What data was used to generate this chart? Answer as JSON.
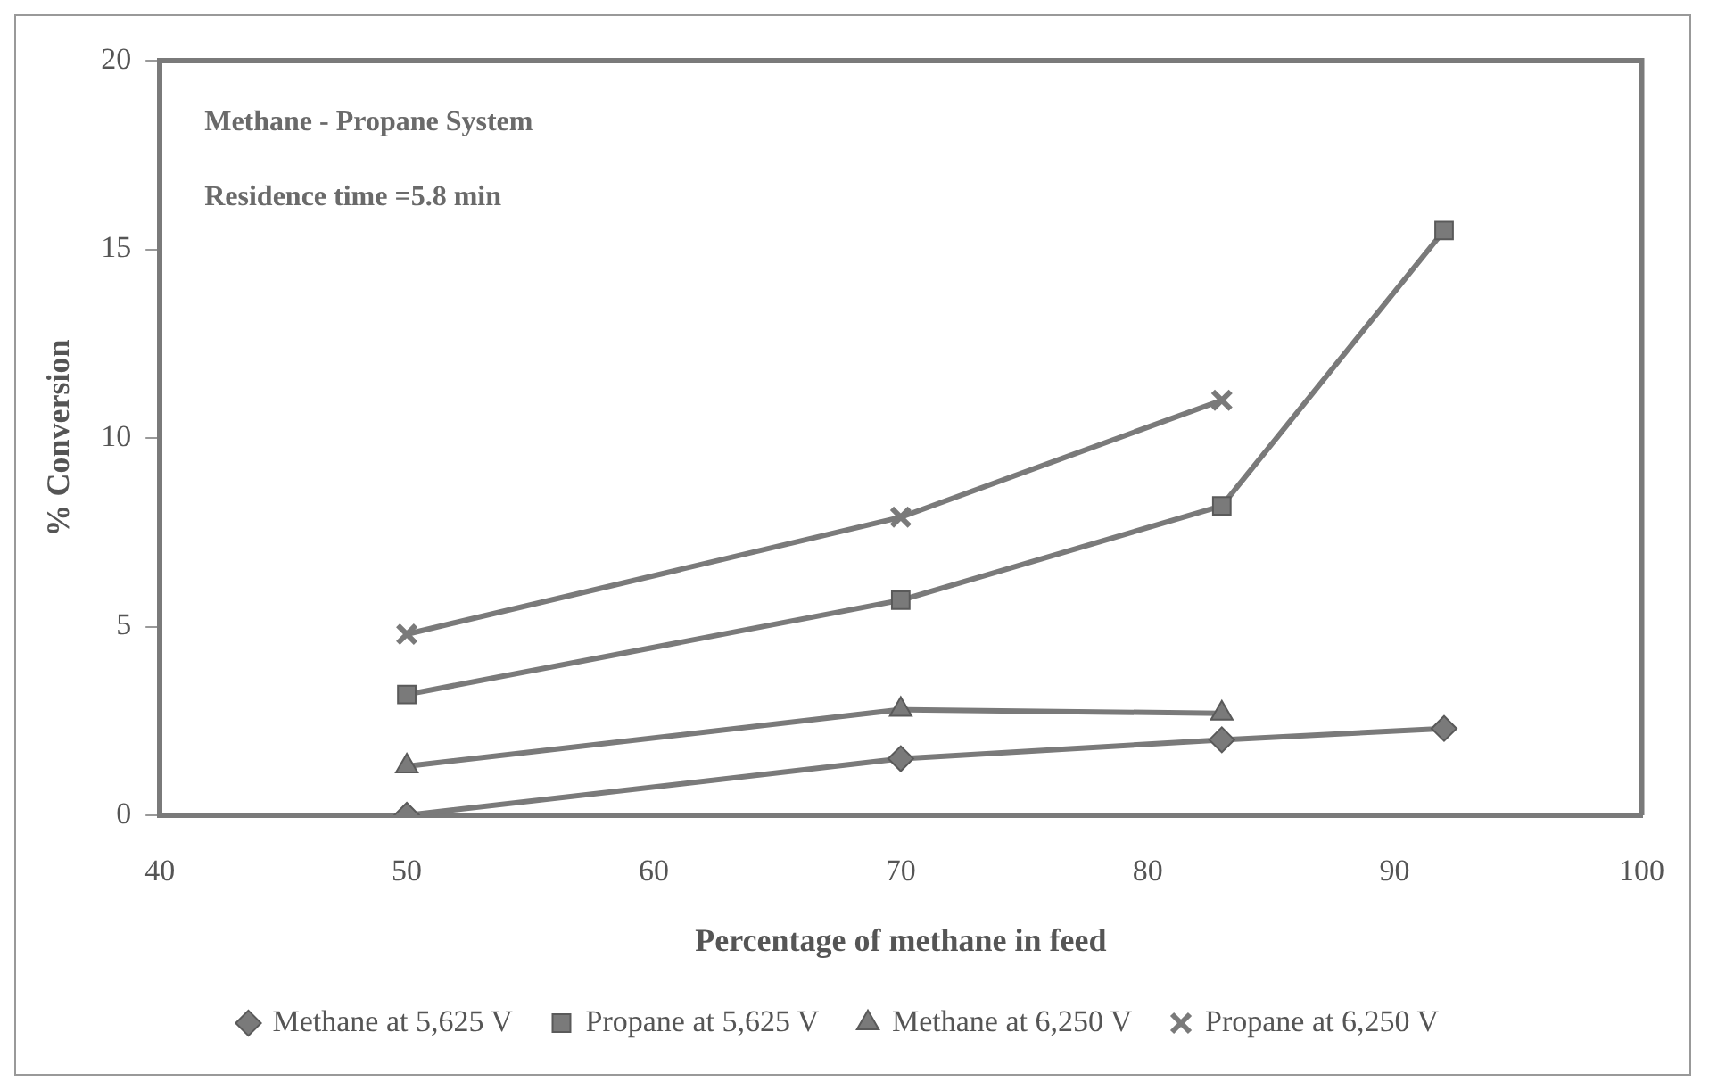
{
  "chart_data": {
    "type": "line",
    "xlabel": "Percentage of methane in feed",
    "ylabel": "% Conversion",
    "annotations": [
      "Methane - Propane System",
      "Residence time =5.8 min"
    ],
    "xlim": [
      40,
      100
    ],
    "xticks": [
      40,
      50,
      60,
      70,
      80,
      90,
      100
    ],
    "ylim": [
      0,
      20
    ],
    "yticks": [
      0,
      5,
      10,
      15,
      20
    ],
    "grid": false,
    "legend": "bottom",
    "line_style": "solid",
    "series": [
      {
        "name": "Methane at 5,625 V",
        "color": "#7a7a7a",
        "marker": "diamond",
        "x": [
          50,
          70,
          83,
          92
        ],
        "values": [
          0,
          1.5,
          2,
          2.3
        ]
      },
      {
        "name": "Propane at 5,625 V",
        "color": "#7a7a7a",
        "marker": "square",
        "x": [
          50,
          70,
          83,
          92
        ],
        "values": [
          3.2,
          5.7,
          8.2,
          15.5
        ]
      },
      {
        "name": "Methane at 6,250 V",
        "color": "#7a7a7a",
        "marker": "triangle",
        "x": [
          50,
          70,
          83
        ],
        "values": [
          1.3,
          2.8,
          2.7
        ]
      },
      {
        "name": "Propane at 6,250 V",
        "color": "#7a7a7a",
        "marker": "cross",
        "x": [
          50,
          70,
          83
        ],
        "values": [
          4.8,
          7.9,
          11
        ]
      }
    ]
  }
}
